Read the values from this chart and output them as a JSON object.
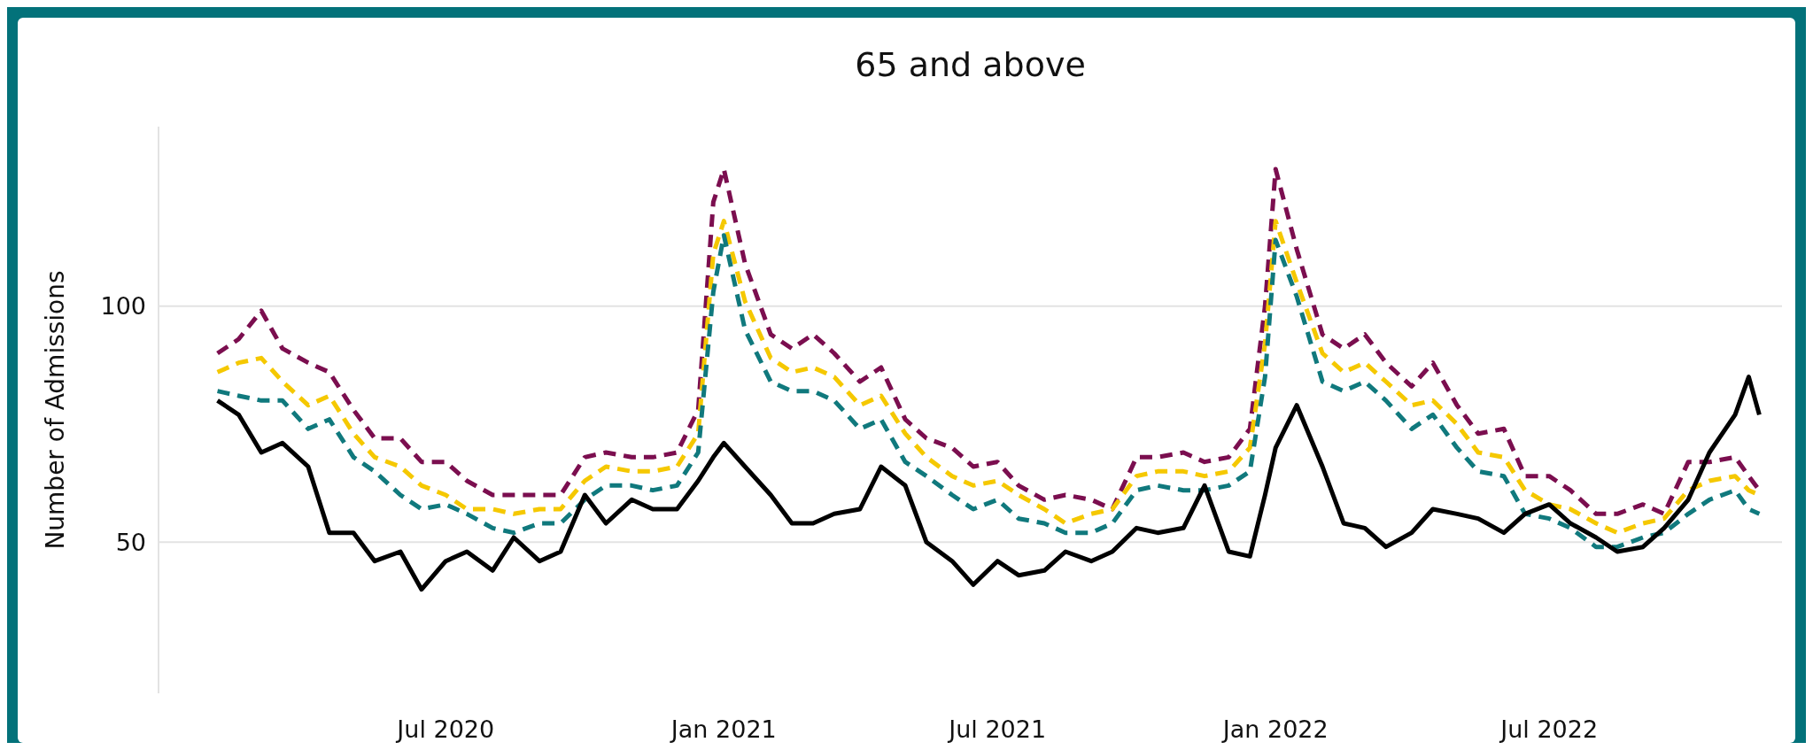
{
  "chart_data": {
    "type": "line",
    "title": "65 and above",
    "ylabel": "Number of Admissions",
    "x": [
      "2020-02-01",
      "2020-02-15",
      "2020-03-01",
      "2020-03-15",
      "2020-04-01",
      "2020-04-15",
      "2020-05-01",
      "2020-05-15",
      "2020-06-01",
      "2020-06-15",
      "2020-07-01",
      "2020-07-15",
      "2020-08-01",
      "2020-08-15",
      "2020-09-01",
      "2020-09-15",
      "2020-10-01",
      "2020-10-15",
      "2020-11-01",
      "2020-11-15",
      "2020-12-01",
      "2020-12-15",
      "2020-12-25",
      "2021-01-01",
      "2021-01-15",
      "2021-02-01",
      "2021-02-15",
      "2021-03-01",
      "2021-03-15",
      "2021-04-01",
      "2021-04-15",
      "2021-05-01",
      "2021-05-15",
      "2021-06-01",
      "2021-06-15",
      "2021-07-01",
      "2021-07-15",
      "2021-08-01",
      "2021-08-15",
      "2021-09-01",
      "2021-09-15",
      "2021-10-01",
      "2021-10-15",
      "2021-11-01",
      "2021-11-15",
      "2021-12-01",
      "2021-12-15",
      "2021-12-25",
      "2022-01-01",
      "2022-01-15",
      "2022-02-01",
      "2022-02-15",
      "2022-03-01",
      "2022-03-15",
      "2022-04-01",
      "2022-04-15",
      "2022-05-01",
      "2022-05-15",
      "2022-06-01",
      "2022-06-15",
      "2022-07-01",
      "2022-07-15",
      "2022-08-01",
      "2022-08-15",
      "2022-09-01",
      "2022-09-15",
      "2022-10-01",
      "2022-10-15",
      "2022-11-01",
      "2022-11-10",
      "2022-11-17"
    ],
    "series": [
      {
        "color": "#7b0e4f",
        "line_style": "dashed",
        "values": [
          90,
          93,
          99,
          91,
          88,
          86,
          78,
          72,
          72,
          67,
          67,
          63,
          60,
          60,
          60,
          60,
          68,
          69,
          68,
          68,
          69,
          78,
          122,
          129,
          109,
          94,
          91,
          94,
          90,
          84,
          87,
          76,
          72,
          70,
          66,
          67,
          62,
          59,
          60,
          59,
          57,
          68,
          68,
          69,
          67,
          68,
          74,
          100,
          129,
          112,
          94,
          91,
          94,
          88,
          83,
          88,
          79,
          73,
          74,
          64,
          64,
          61,
          56,
          56,
          58,
          56,
          67,
          67,
          68,
          64,
          61
        ]
      },
      {
        "color": "#f5c800",
        "line_style": "dashed",
        "values": [
          86,
          88,
          89,
          84,
          79,
          81,
          73,
          68,
          66,
          62,
          60,
          57,
          57,
          56,
          57,
          57,
          63,
          66,
          65,
          65,
          66,
          73,
          111,
          118,
          101,
          89,
          86,
          87,
          85,
          79,
          81,
          73,
          68,
          64,
          62,
          63,
          60,
          57,
          54,
          56,
          57,
          64,
          65,
          65,
          64,
          65,
          70,
          92,
          118,
          105,
          90,
          86,
          88,
          84,
          79,
          80,
          75,
          69,
          68,
          61,
          58,
          57,
          54,
          52,
          54,
          55,
          61,
          63,
          64,
          61,
          60
        ]
      },
      {
        "color": "#10797d",
        "line_style": "dashed",
        "values": [
          82,
          81,
          80,
          80,
          74,
          76,
          68,
          65,
          60,
          57,
          58,
          56,
          53,
          52,
          54,
          54,
          59,
          62,
          62,
          61,
          62,
          69,
          103,
          115,
          95,
          84,
          82,
          82,
          80,
          74,
          76,
          67,
          64,
          60,
          57,
          59,
          55,
          54,
          52,
          52,
          54,
          61,
          62,
          61,
          61,
          62,
          65,
          85,
          114,
          102,
          84,
          82,
          84,
          80,
          74,
          77,
          70,
          65,
          64,
          56,
          55,
          53,
          49,
          49,
          51,
          52,
          56,
          59,
          61,
          57,
          56
        ]
      },
      {
        "color": "#000000",
        "line_style": "solid",
        "values": [
          80,
          77,
          69,
          71,
          66,
          52,
          52,
          46,
          48,
          40,
          46,
          48,
          44,
          51,
          46,
          48,
          60,
          54,
          59,
          57,
          57,
          63,
          68,
          71,
          66,
          60,
          54,
          54,
          56,
          57,
          66,
          62,
          50,
          46,
          41,
          46,
          43,
          44,
          48,
          46,
          48,
          53,
          52,
          53,
          62,
          48,
          47,
          60,
          70,
          79,
          66,
          54,
          53,
          49,
          52,
          57,
          56,
          55,
          52,
          56,
          58,
          54,
          51,
          48,
          49,
          53,
          59,
          69,
          77,
          85,
          77
        ]
      }
    ],
    "xlim": [
      "2019-12-24",
      "2022-12-02"
    ],
    "xticks": [
      {
        "value": "2020-07-01",
        "label": "Jul 2020"
      },
      {
        "value": "2021-01-01",
        "label": "Jan 2021"
      },
      {
        "value": "2021-07-01",
        "label": "Jul 2021"
      },
      {
        "value": "2022-01-01",
        "label": "Jan 2022"
      },
      {
        "value": "2022-07-01",
        "label": "Jul 2022"
      }
    ],
    "ylim": [
      18,
      138
    ],
    "yticks": [
      50,
      100
    ],
    "grid": "y"
  }
}
